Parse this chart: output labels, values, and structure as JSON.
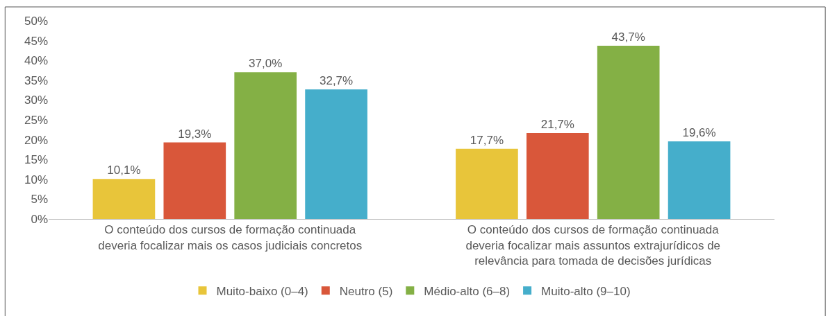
{
  "chart_data": {
    "type": "bar",
    "categories": [
      "O conteúdo dos cursos de formação continuada deveria focalizar mais os casos judiciais concretos",
      "O conteúdo dos cursos de formação continuada deveria focalizar mais assuntos extrajurídicos de relevância para tomada de decisões jurídicas"
    ],
    "series": [
      {
        "name": "Muito-baixo (0–4)",
        "color": "#e8c53a",
        "values": [
          10.1,
          17.7
        ],
        "value_labels": [
          "10,1%",
          "17,7%"
        ]
      },
      {
        "name": "Neutro (5)",
        "color": "#d9573a",
        "values": [
          19.3,
          21.7
        ],
        "value_labels": [
          "19,3%",
          "21,7%"
        ]
      },
      {
        "name": "Médio-alto (6–8)",
        "color": "#84b045",
        "values": [
          37.0,
          43.7
        ],
        "value_labels": [
          "37,0%",
          "43,7%"
        ]
      },
      {
        "name": "Muito-alto (9–10)",
        "color": "#45aecb",
        "values": [
          32.7,
          19.6
        ],
        "value_labels": [
          "32,7%",
          "19,6%"
        ]
      }
    ],
    "ylim": [
      0,
      50
    ],
    "yticks": [
      {
        "value": 0,
        "label": "0%"
      },
      {
        "value": 5,
        "label": "5%"
      },
      {
        "value": 10,
        "label": "10%"
      },
      {
        "value": 15,
        "label": "15%"
      },
      {
        "value": 20,
        "label": "20%"
      },
      {
        "value": 25,
        "label": "25%"
      },
      {
        "value": 30,
        "label": "30%"
      },
      {
        "value": 35,
        "label": "35%"
      },
      {
        "value": 40,
        "label": "40%"
      },
      {
        "value": 45,
        "label": "45%"
      },
      {
        "value": 50,
        "label": "50%"
      }
    ],
    "legend": "bottom"
  }
}
